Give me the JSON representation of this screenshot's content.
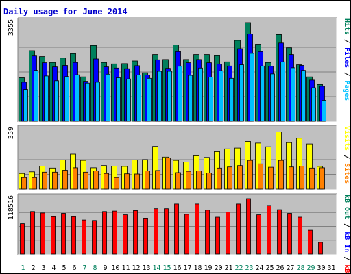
{
  "title": "Daily usage for June 2014",
  "colors": {
    "background": "#ffffff",
    "panel": "#c0c0c0",
    "gridline": "#808080",
    "title": "#0000cc",
    "hits": "#00805c",
    "files": "#0000ff",
    "pages": "#00c0ff",
    "visits": "#ffff00",
    "sites": "#ff8000",
    "kbin": "#0000ff",
    "kbf": "#ff0000",
    "kbout": "#00805c",
    "weekday": "#000000",
    "weekend": "#00805c"
  },
  "chart_data": [
    {
      "type": "bar",
      "name": "pages-files-hits",
      "ymax_label": "3355",
      "ylim": [
        0,
        3355
      ],
      "legend": [
        {
          "text": "Pages",
          "color": "#00c0ff"
        },
        {
          "text": " / ",
          "color": "#000000"
        },
        {
          "text": "Files",
          "color": "#0000ff"
        },
        {
          "text": " / ",
          "color": "#000000"
        },
        {
          "text": "Hits",
          "color": "#00805c"
        }
      ],
      "series": [
        {
          "name": "Hits",
          "color": "#00805c",
          "values": [
            1480,
            2400,
            2200,
            2000,
            2150,
            2300,
            1510,
            2580,
            2000,
            1950,
            1960,
            2050,
            1650,
            2270,
            2100,
            2600,
            2100,
            2270,
            2270,
            2230,
            2020,
            2750,
            3355,
            2620,
            2000,
            2950,
            2500,
            1920,
            1510,
            1250
          ]
        },
        {
          "name": "Files",
          "color": "#0000ff",
          "values": [
            1330,
            2220,
            1990,
            1850,
            1900,
            2000,
            1360,
            2120,
            1850,
            1810,
            1790,
            1890,
            1570,
            2090,
            1800,
            2370,
            1990,
            2100,
            1990,
            1940,
            1880,
            2470,
            2970,
            2370,
            1870,
            2660,
            2270,
            1900,
            1400,
            1190
          ]
        },
        {
          "name": "Pages",
          "color": "#00c0ff",
          "values": [
            1080,
            1730,
            1540,
            1380,
            1520,
            1580,
            1300,
            1330,
            1600,
            1480,
            1440,
            1570,
            1460,
            1700,
            1700,
            1870,
            1560,
            1810,
            1500,
            1720,
            1460,
            1920,
            2310,
            1880,
            1610,
            2020,
            1820,
            1730,
            1140,
            710
          ]
        }
      ]
    },
    {
      "type": "bar",
      "name": "sites-visits",
      "ymax_label": "359",
      "ylim": [
        0,
        359
      ],
      "legend": [
        {
          "text": "Sites",
          "color": "#ff8000"
        },
        {
          "text": " / ",
          "color": "#000000"
        },
        {
          "text": "Visits",
          "color": "#ffff00"
        }
      ],
      "series": [
        {
          "name": "Visits",
          "color": "#ffff00",
          "values": [
            95,
            105,
            140,
            128,
            178,
            213,
            175,
            130,
            143,
            140,
            138,
            178,
            180,
            260,
            195,
            175,
            165,
            203,
            193,
            228,
            245,
            250,
            290,
            280,
            258,
            348,
            283,
            310,
            275,
            138
          ]
        },
        {
          "name": "Sites",
          "color": "#ff8000",
          "values": [
            70,
            70,
            103,
            103,
            115,
            130,
            103,
            110,
            95,
            70,
            93,
            92,
            110,
            113,
            190,
            100,
            108,
            110,
            98,
            128,
            135,
            143,
            175,
            153,
            133,
            175,
            135,
            140,
            128,
            130
          ]
        }
      ]
    },
    {
      "type": "bar",
      "name": "kbin-kbout",
      "ymax_label": "118516",
      "ylim": [
        0,
        118516
      ],
      "legend": [
        {
          "text": "kB F",
          "color": "#ff0000"
        },
        {
          "text": " / ",
          "color": "#000000"
        },
        {
          "text": "kB In",
          "color": "#0000ff"
        },
        {
          "text": " / ",
          "color": "#000000"
        },
        {
          "text": "kB Out",
          "color": "#00805c"
        }
      ],
      "series": [
        {
          "name": "kB F",
          "color": "#ff0000",
          "values": [
            65000,
            91000,
            88000,
            80000,
            87000,
            80000,
            73000,
            72000,
            91000,
            92000,
            84000,
            93000,
            77000,
            97000,
            97000,
            107000,
            85000,
            107000,
            94000,
            79000,
            90000,
            107000,
            118516,
            84000,
            104000,
            95000,
            87000,
            79000,
            51000,
            25000
          ]
        }
      ]
    }
  ],
  "x_axis": {
    "labels": [
      "1",
      "2",
      "3",
      "4",
      "5",
      "6",
      "7",
      "8",
      "9",
      "10",
      "11",
      "12",
      "13",
      "14",
      "15",
      "16",
      "17",
      "18",
      "19",
      "20",
      "21",
      "22",
      "23",
      "24",
      "25",
      "26",
      "27",
      "28",
      "29",
      "30",
      "31"
    ],
    "weekend": [
      true,
      false,
      false,
      false,
      false,
      false,
      true,
      true,
      false,
      false,
      false,
      false,
      false,
      true,
      true,
      false,
      false,
      false,
      false,
      false,
      false,
      true,
      true,
      false,
      false,
      false,
      false,
      true,
      true,
      false,
      false
    ]
  }
}
